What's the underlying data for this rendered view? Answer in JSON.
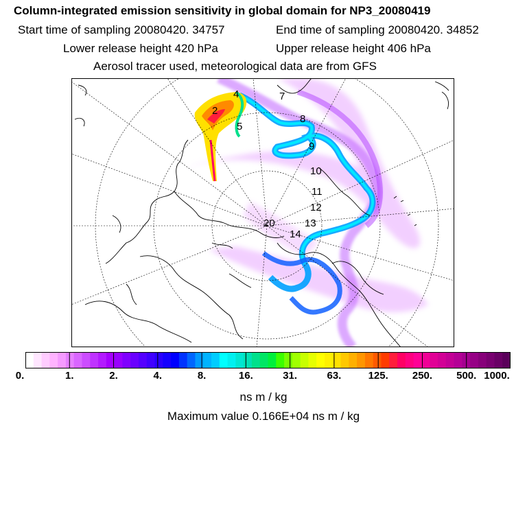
{
  "title": "Column-integrated emission sensitivity in global domain for NP3_20080419",
  "sampling": {
    "start": "Start time of sampling 20080420. 34757",
    "end": "End time of sampling 20080420. 34852"
  },
  "release": {
    "lower": "Lower release height  420 hPa",
    "upper": "Upper release height  406 hPa"
  },
  "tracer_note": "Aerosol tracer used, meteorological data are from GFS",
  "map": {
    "labels": [
      "2",
      "4",
      "5",
      "7",
      "8",
      "9",
      "10",
      "11",
      "12",
      "13",
      "14",
      "20"
    ]
  },
  "colorbar": {
    "tick_labels": [
      "0.",
      "1.",
      "2.",
      "4.",
      "8.",
      "16.",
      "31.",
      "63.",
      "125.",
      "250.",
      "500.",
      "1000."
    ],
    "colors": [
      "#ffffff",
      "#ffe6ff",
      "#ffccff",
      "#ffb3ff",
      "#f59bff",
      "#e680ff",
      "#d966ff",
      "#cc4dff",
      "#bf33ff",
      "#b31aff",
      "#a600ff",
      "#9900ff",
      "#8000ff",
      "#6a00ff",
      "#5500ff",
      "#4000ff",
      "#2a00ff",
      "#1500ff",
      "#0000ff",
      "#0033ff",
      "#0066ff",
      "#0099ff",
      "#00b3ff",
      "#00ccff",
      "#00ffff",
      "#00f0f0",
      "#00e6d2",
      "#00e0b4",
      "#00e08c",
      "#00e664",
      "#00f03c",
      "#3cff00",
      "#78ff00",
      "#a0ff00",
      "#c8ff00",
      "#e6ff00",
      "#ffff00",
      "#fff000",
      "#ffe000",
      "#ffc800",
      "#ffb000",
      "#ff9600",
      "#ff7800",
      "#ff5a00",
      "#ff3c00",
      "#ff1e3c",
      "#ff0064",
      "#ff0080",
      "#ff0096",
      "#f00096",
      "#e10096",
      "#d20096",
      "#c30096",
      "#b40096",
      "#a50090",
      "#960085",
      "#87007a",
      "#780070",
      "#690065",
      "#5a005a"
    ]
  },
  "units": "ns m / kg",
  "max_value": "Maximum value  0.166E+04 ns m / kg"
}
